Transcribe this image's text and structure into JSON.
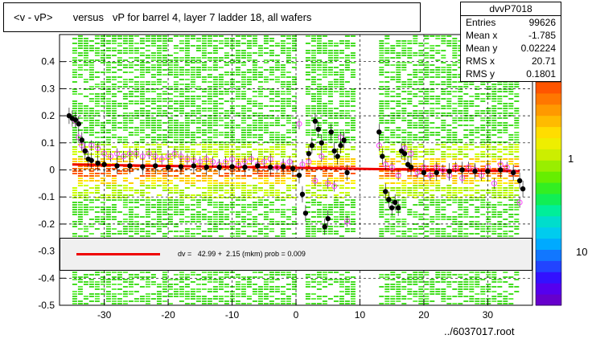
{
  "title": "<v - vP>       versus   vP for barrel 4, layer 7 ladder 18, all wafers",
  "stats": {
    "name": "dvvP7018",
    "rows": [
      {
        "key": "Entries",
        "value": "99626"
      },
      {
        "key": "Mean x",
        "value": "-1.785"
      },
      {
        "key": "Mean y",
        "value": "0.02224"
      },
      {
        "key": "RMS x",
        "value": "20.71"
      },
      {
        "key": "RMS y",
        "value": "0.1801"
      }
    ]
  },
  "fit_legend": "dv =   42.99 +  2.15 (mkm) prob = 0.009",
  "file_label": "../6037017.root",
  "colors": {
    "fit_line": "#ee0000",
    "profile_black": "#000000",
    "profile_magenta": "#ff44ff",
    "legend_bg": "#f0f0f0"
  },
  "chart_data": {
    "type": "heatmap",
    "xlim": [
      -37,
      37
    ],
    "ylim": [
      -0.5,
      0.5
    ],
    "x_ticks": [
      -30,
      -20,
      -10,
      0,
      10,
      20,
      30
    ],
    "y_ticks": [
      -0.5,
      -0.4,
      -0.3,
      -0.2,
      -0.1,
      0,
      0.1,
      0.2,
      0.3,
      0.4
    ],
    "y_tick_labels": [
      "-0.5",
      "-0.4",
      "-0.3",
      "-0.2",
      "-0.1",
      "0",
      "0.1",
      "0.2",
      "0.3",
      "0.4"
    ],
    "x_tick_labels": [
      "-30",
      "-20",
      "-10",
      "0",
      "10",
      "20",
      "30"
    ],
    "grid": true,
    "color_scale_labels": [
      "1",
      "10"
    ],
    "occupied_x_ranges": [
      [
        -35,
        0
      ],
      [
        1.5,
        9
      ],
      [
        13,
        35
      ]
    ],
    "fit": {
      "intercept_mkm": 42.99,
      "slope_mkm": 2.15,
      "y_at_left": 0.02,
      "y_at_right": -0.005
    },
    "profile_black": [
      {
        "x": -35.5,
        "y": 0.2
      },
      {
        "x": -35,
        "y": 0.19
      },
      {
        "x": -34.5,
        "y": 0.185
      },
      {
        "x": -34,
        "y": 0.17
      },
      {
        "x": -33.5,
        "y": 0.11
      },
      {
        "x": -33,
        "y": 0.07
      },
      {
        "x": -32.5,
        "y": 0.04
      },
      {
        "x": -32,
        "y": 0.035
      },
      {
        "x": -31,
        "y": 0.025
      },
      {
        "x": -30,
        "y": 0.02
      },
      {
        "x": -28,
        "y": 0.015
      },
      {
        "x": -26,
        "y": 0.015
      },
      {
        "x": -24,
        "y": 0.012
      },
      {
        "x": -22,
        "y": 0.015
      },
      {
        "x": -20,
        "y": 0.01
      },
      {
        "x": -18,
        "y": 0.012
      },
      {
        "x": -16,
        "y": 0.015
      },
      {
        "x": -14,
        "y": 0.01
      },
      {
        "x": -12,
        "y": 0.01
      },
      {
        "x": -10,
        "y": 0.012
      },
      {
        "x": -8,
        "y": 0.01
      },
      {
        "x": -6,
        "y": 0.015
      },
      {
        "x": -4,
        "y": 0.01
      },
      {
        "x": -2,
        "y": 0.012
      },
      {
        "x": -0.5,
        "y": 0.005
      },
      {
        "x": 0.5,
        "y": -0.02
      },
      {
        "x": 1,
        "y": -0.09
      },
      {
        "x": 1.5,
        "y": -0.16
      },
      {
        "x": 2,
        "y": 0.06
      },
      {
        "x": 2.5,
        "y": 0.09
      },
      {
        "x": 3,
        "y": 0.18
      },
      {
        "x": 3.5,
        "y": 0.15
      },
      {
        "x": 4,
        "y": 0.1
      },
      {
        "x": 4.5,
        "y": -0.21
      },
      {
        "x": 5,
        "y": -0.18
      },
      {
        "x": 5.5,
        "y": 0.14
      },
      {
        "x": 6,
        "y": 0.07
      },
      {
        "x": 6.5,
        "y": 0.05
      },
      {
        "x": 7,
        "y": 0.09
      },
      {
        "x": 7.5,
        "y": 0.11
      },
      {
        "x": 8,
        "y": -0.01
      },
      {
        "x": 13,
        "y": 0.14
      },
      {
        "x": 13.5,
        "y": 0.05
      },
      {
        "x": 14,
        "y": -0.08
      },
      {
        "x": 14.5,
        "y": -0.11
      },
      {
        "x": 15,
        "y": -0.14
      },
      {
        "x": 15.5,
        "y": -0.12
      },
      {
        "x": 16,
        "y": -0.14
      },
      {
        "x": 16.5,
        "y": 0.07
      },
      {
        "x": 17,
        "y": 0.06
      },
      {
        "x": 17.5,
        "y": 0.02
      },
      {
        "x": 18,
        "y": 0.01
      },
      {
        "x": 20,
        "y": -0.01
      },
      {
        "x": 22,
        "y": -0.01
      },
      {
        "x": 24,
        "y": -0.005
      },
      {
        "x": 26,
        "y": 0
      },
      {
        "x": 28,
        "y": -0.005
      },
      {
        "x": 30,
        "y": -0.005
      },
      {
        "x": 32,
        "y": 0
      },
      {
        "x": 34,
        "y": -0.01
      },
      {
        "x": 35,
        "y": -0.04
      },
      {
        "x": 35.5,
        "y": -0.07
      }
    ],
    "profile_magenta": [
      {
        "x": -34.5,
        "y": 0.18
      },
      {
        "x": -34,
        "y": 0.12
      },
      {
        "x": -33.5,
        "y": 0.09
      },
      {
        "x": -33,
        "y": 0.07
      },
      {
        "x": -32,
        "y": 0.09
      },
      {
        "x": -31,
        "y": 0.08
      },
      {
        "x": -30,
        "y": 0.06
      },
      {
        "x": -29,
        "y": 0.05
      },
      {
        "x": -28,
        "y": 0.06
      },
      {
        "x": -27,
        "y": 0.05
      },
      {
        "x": -26,
        "y": 0.06
      },
      {
        "x": -25,
        "y": 0.06
      },
      {
        "x": -24,
        "y": 0.05
      },
      {
        "x": -23,
        "y": 0.06
      },
      {
        "x": -22,
        "y": 0.05
      },
      {
        "x": -21,
        "y": 0.04
      },
      {
        "x": -20,
        "y": 0.05
      },
      {
        "x": -19,
        "y": 0.06
      },
      {
        "x": -18,
        "y": 0.05
      },
      {
        "x": -17,
        "y": 0.04
      },
      {
        "x": -16,
        "y": 0.035
      },
      {
        "x": -15,
        "y": 0.03
      },
      {
        "x": -14,
        "y": 0.04
      },
      {
        "x": -13,
        "y": 0.03
      },
      {
        "x": -12,
        "y": 0.02
      },
      {
        "x": -11,
        "y": 0.03
      },
      {
        "x": -10,
        "y": 0.04
      },
      {
        "x": -9,
        "y": 0.02
      },
      {
        "x": -8,
        "y": 0.03
      },
      {
        "x": -7,
        "y": 0.04
      },
      {
        "x": -6,
        "y": 0.02
      },
      {
        "x": -5,
        "y": 0.03
      },
      {
        "x": -4,
        "y": 0.04
      },
      {
        "x": -3,
        "y": 0.01
      },
      {
        "x": -2,
        "y": 0.02
      },
      {
        "x": -1,
        "y": 0.03
      },
      {
        "x": 0.5,
        "y": 0.17
      },
      {
        "x": 1,
        "y": 0.02
      },
      {
        "x": 2,
        "y": 0.03
      },
      {
        "x": 3,
        "y": -0.04
      },
      {
        "x": 4,
        "y": 0.05
      },
      {
        "x": 5,
        "y": -0.05
      },
      {
        "x": 6,
        "y": -0.06
      },
      {
        "x": 7,
        "y": 0.12
      },
      {
        "x": 8,
        "y": -0.19
      },
      {
        "x": 13,
        "y": 0.09
      },
      {
        "x": 14,
        "y": 0.02
      },
      {
        "x": 15,
        "y": 0.01
      },
      {
        "x": 16,
        "y": -0.02
      },
      {
        "x": 17,
        "y": 0.08
      },
      {
        "x": 18,
        "y": 0.06
      },
      {
        "x": 19,
        "y": -0.01
      },
      {
        "x": 20,
        "y": 0.01
      },
      {
        "x": 21,
        "y": -0.02
      },
      {
        "x": 22,
        "y": 0.01
      },
      {
        "x": 23,
        "y": 0
      },
      {
        "x": 24,
        "y": -0.02
      },
      {
        "x": 25,
        "y": 0.01
      },
      {
        "x": 26,
        "y": -0.03
      },
      {
        "x": 27,
        "y": 0.01
      },
      {
        "x": 28,
        "y": 0
      },
      {
        "x": 29,
        "y": -0.02
      },
      {
        "x": 30,
        "y": 0.01
      },
      {
        "x": 31,
        "y": -0.05
      },
      {
        "x": 32,
        "y": 0.02
      },
      {
        "x": 33,
        "y": 0.01
      },
      {
        "x": 34,
        "y": -0.01
      },
      {
        "x": 35,
        "y": -0.12
      }
    ]
  }
}
